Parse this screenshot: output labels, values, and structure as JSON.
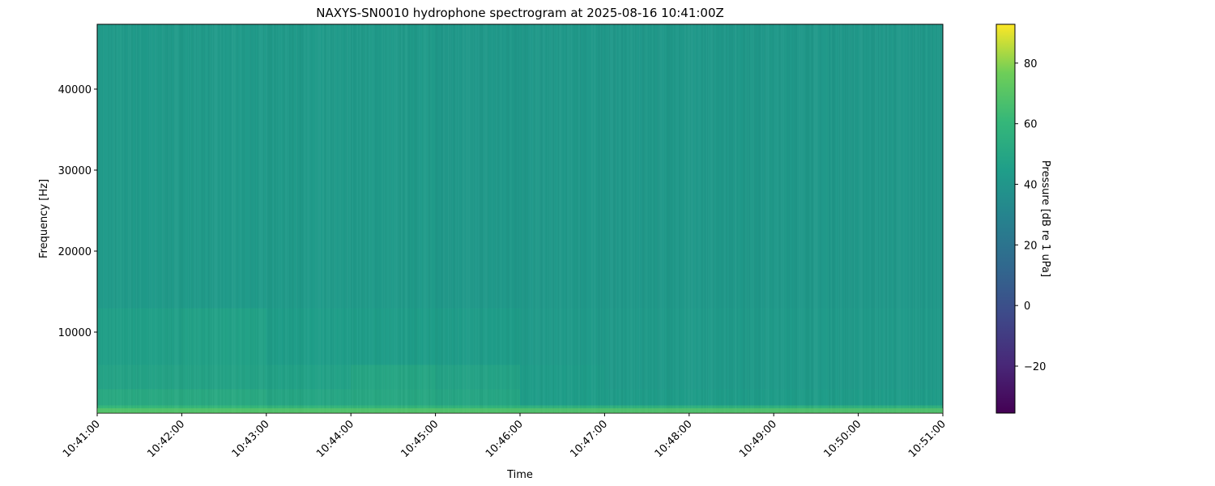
{
  "chart_data": {
    "type": "heatmap",
    "title": "NAXYS-SN0010 hydrophone spectrogram at 2025-08-16 10:41:00Z",
    "xlabel": "Time",
    "ylabel": "Frequency [Hz]",
    "colorbar_label": "Pressure [dB re 1 uPa]",
    "colormap": "viridis",
    "x_ticks": [
      "10:41:00",
      "10:42:00",
      "10:43:00",
      "10:44:00",
      "10:45:00",
      "10:46:00",
      "10:47:00",
      "10:48:00",
      "10:49:00",
      "10:50:00",
      "10:51:00"
    ],
    "y_ticks": [
      10000,
      20000,
      30000,
      40000
    ],
    "ylim": [
      0,
      48000
    ],
    "clim": [
      -35.5,
      92.8
    ],
    "colorbar_ticks": [
      -20,
      0,
      20,
      40,
      60,
      80
    ],
    "grid": false,
    "time_columns": [
      "10:41",
      "10:42",
      "10:43",
      "10:44",
      "10:45",
      "10:46",
      "10:47",
      "10:48",
      "10:49",
      "10:50"
    ],
    "frequency_bands_hz": [
      [
        0,
        1000
      ],
      [
        1000,
        3000
      ],
      [
        3000,
        6000
      ],
      [
        6000,
        13000
      ],
      [
        13000,
        48000
      ]
    ],
    "values_db": [
      [
        60,
        60,
        59,
        59,
        58,
        56,
        56,
        56,
        56,
        56
      ],
      [
        52,
        52,
        50,
        51,
        50,
        45,
        44,
        44,
        44,
        44
      ],
      [
        48,
        48,
        47,
        50,
        48,
        44,
        43,
        43,
        43,
        43
      ],
      [
        46,
        47,
        45,
        45,
        44,
        43,
        43,
        43,
        43,
        43
      ],
      [
        43,
        43,
        43,
        43,
        42,
        42,
        42,
        42,
        42,
        42
      ]
    ]
  }
}
